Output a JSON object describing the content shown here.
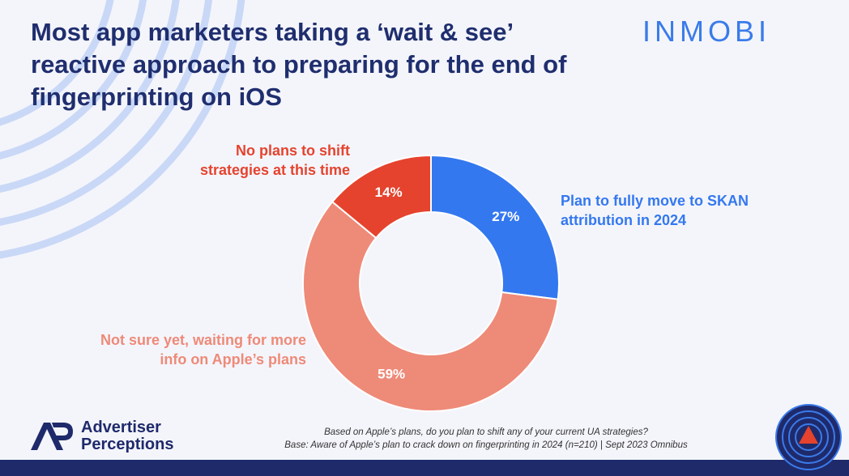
{
  "title": "Most app marketers taking a ‘wait & see’ reactive approach to preparing for the end of fingerprinting on iOS",
  "logo": "INMOBI",
  "brand": "Advertiser Perceptions",
  "footnotes": [
    "Based on Apple’s plans, do you plan to shift any of your current UA strategies?",
    "Base: Aware of Apple’s plan to crack down on fingerprinting in 2024 (n=210) | Sept 2023 Omnibus"
  ],
  "chart_data": {
    "type": "donut",
    "categories": [
      "Plan to fully move to SKAN attribution in 2024",
      "Not sure yet, waiting for more info on Apple’s plans",
      "No plans to shift strategies at this time"
    ],
    "values": [
      27,
      59,
      14
    ],
    "value_labels": [
      "27%",
      "59%",
      "14%"
    ],
    "colors": [
      "#3478f0",
      "#ee8a78",
      "#e5432e"
    ]
  }
}
